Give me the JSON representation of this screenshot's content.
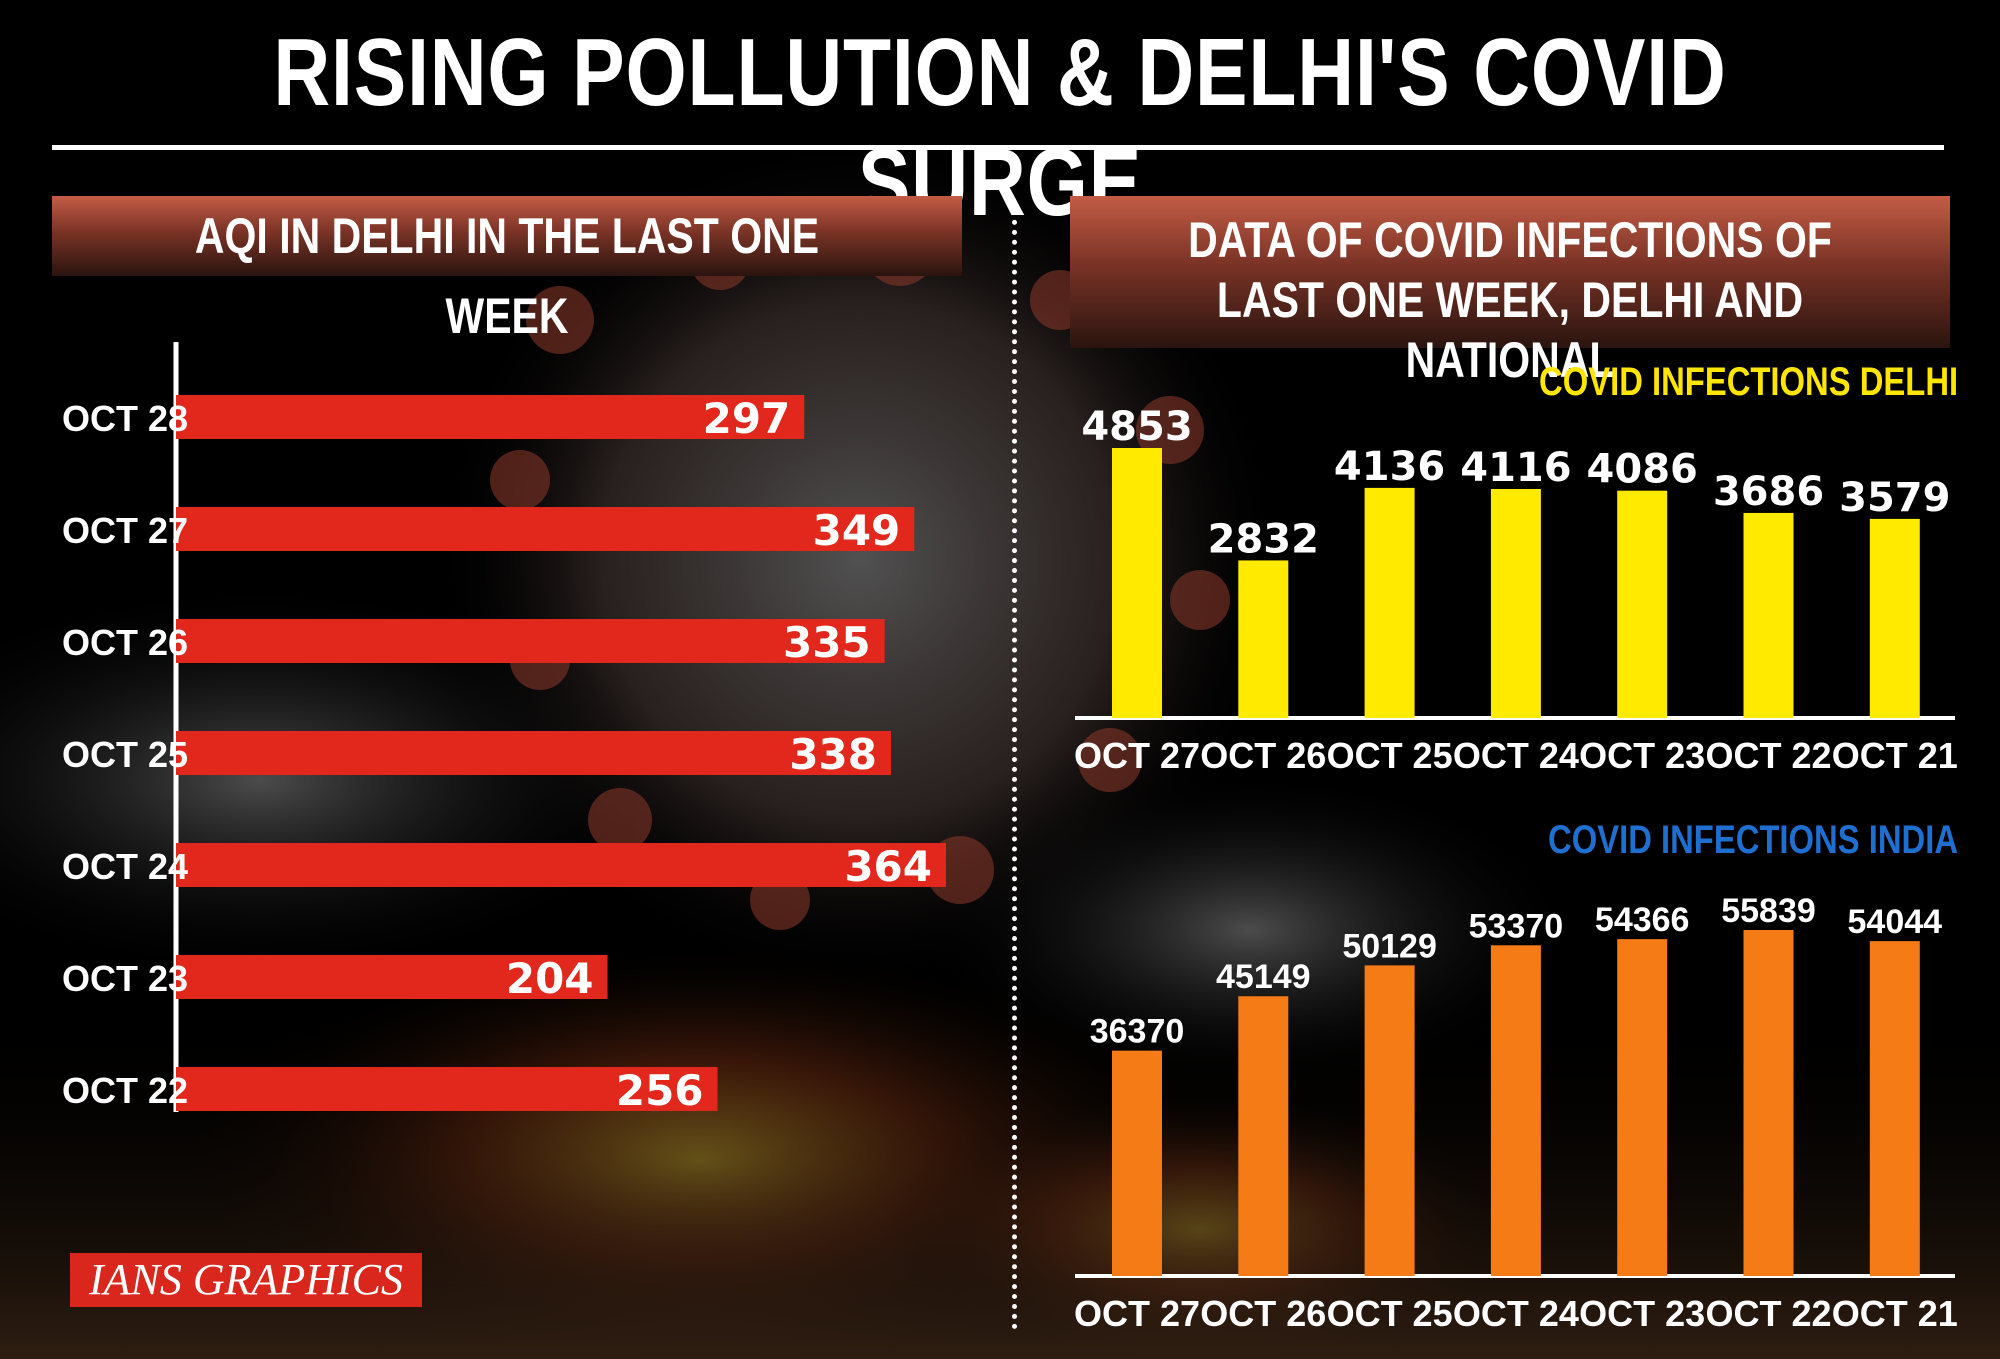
{
  "title": "RISING POLLUTION & DELHI'S COVID SURGE",
  "credit": "IANS GRAPHICS",
  "colors": {
    "aqi_bar": "#e2271c",
    "delhi_bar": "#ffea00",
    "india_bar": "#f47b16",
    "delhi_title": "#ffe600",
    "india_title": "#1f6fd1"
  },
  "chart_data": [
    {
      "type": "bar",
      "orientation": "horizontal",
      "title": "AQI IN DELHI IN THE LAST ONE WEEK",
      "categories": [
        "OCT 28",
        "OCT 27",
        "OCT 26",
        "OCT 25",
        "OCT 24",
        "OCT 23",
        "OCT 22"
      ],
      "values": [
        297,
        349,
        335,
        338,
        364,
        204,
        256
      ],
      "data_labels": true
    },
    {
      "type": "bar",
      "group_title": "DATA OF COVID INFECTIONS OF LAST ONE WEEK, DELHI AND NATIONAL",
      "title": "COVID INFECTIONS DELHI",
      "categories": [
        "OCT 27",
        "OCT 26",
        "OCT 25",
        "OCT 24",
        "OCT 23",
        "OCT 22",
        "OCT 21"
      ],
      "values": [
        4853,
        2832,
        4136,
        4116,
        4086,
        3686,
        3579
      ],
      "data_labels": true
    },
    {
      "type": "bar",
      "title": "COVID INFECTIONS INDIA",
      "categories": [
        "OCT 27",
        "OCT 26",
        "OCT 25",
        "OCT 24",
        "OCT 23",
        "OCT 22",
        "OCT 21"
      ],
      "values": [
        36370,
        45149,
        50129,
        53370,
        54366,
        55839,
        54044
      ],
      "data_labels": true
    }
  ]
}
